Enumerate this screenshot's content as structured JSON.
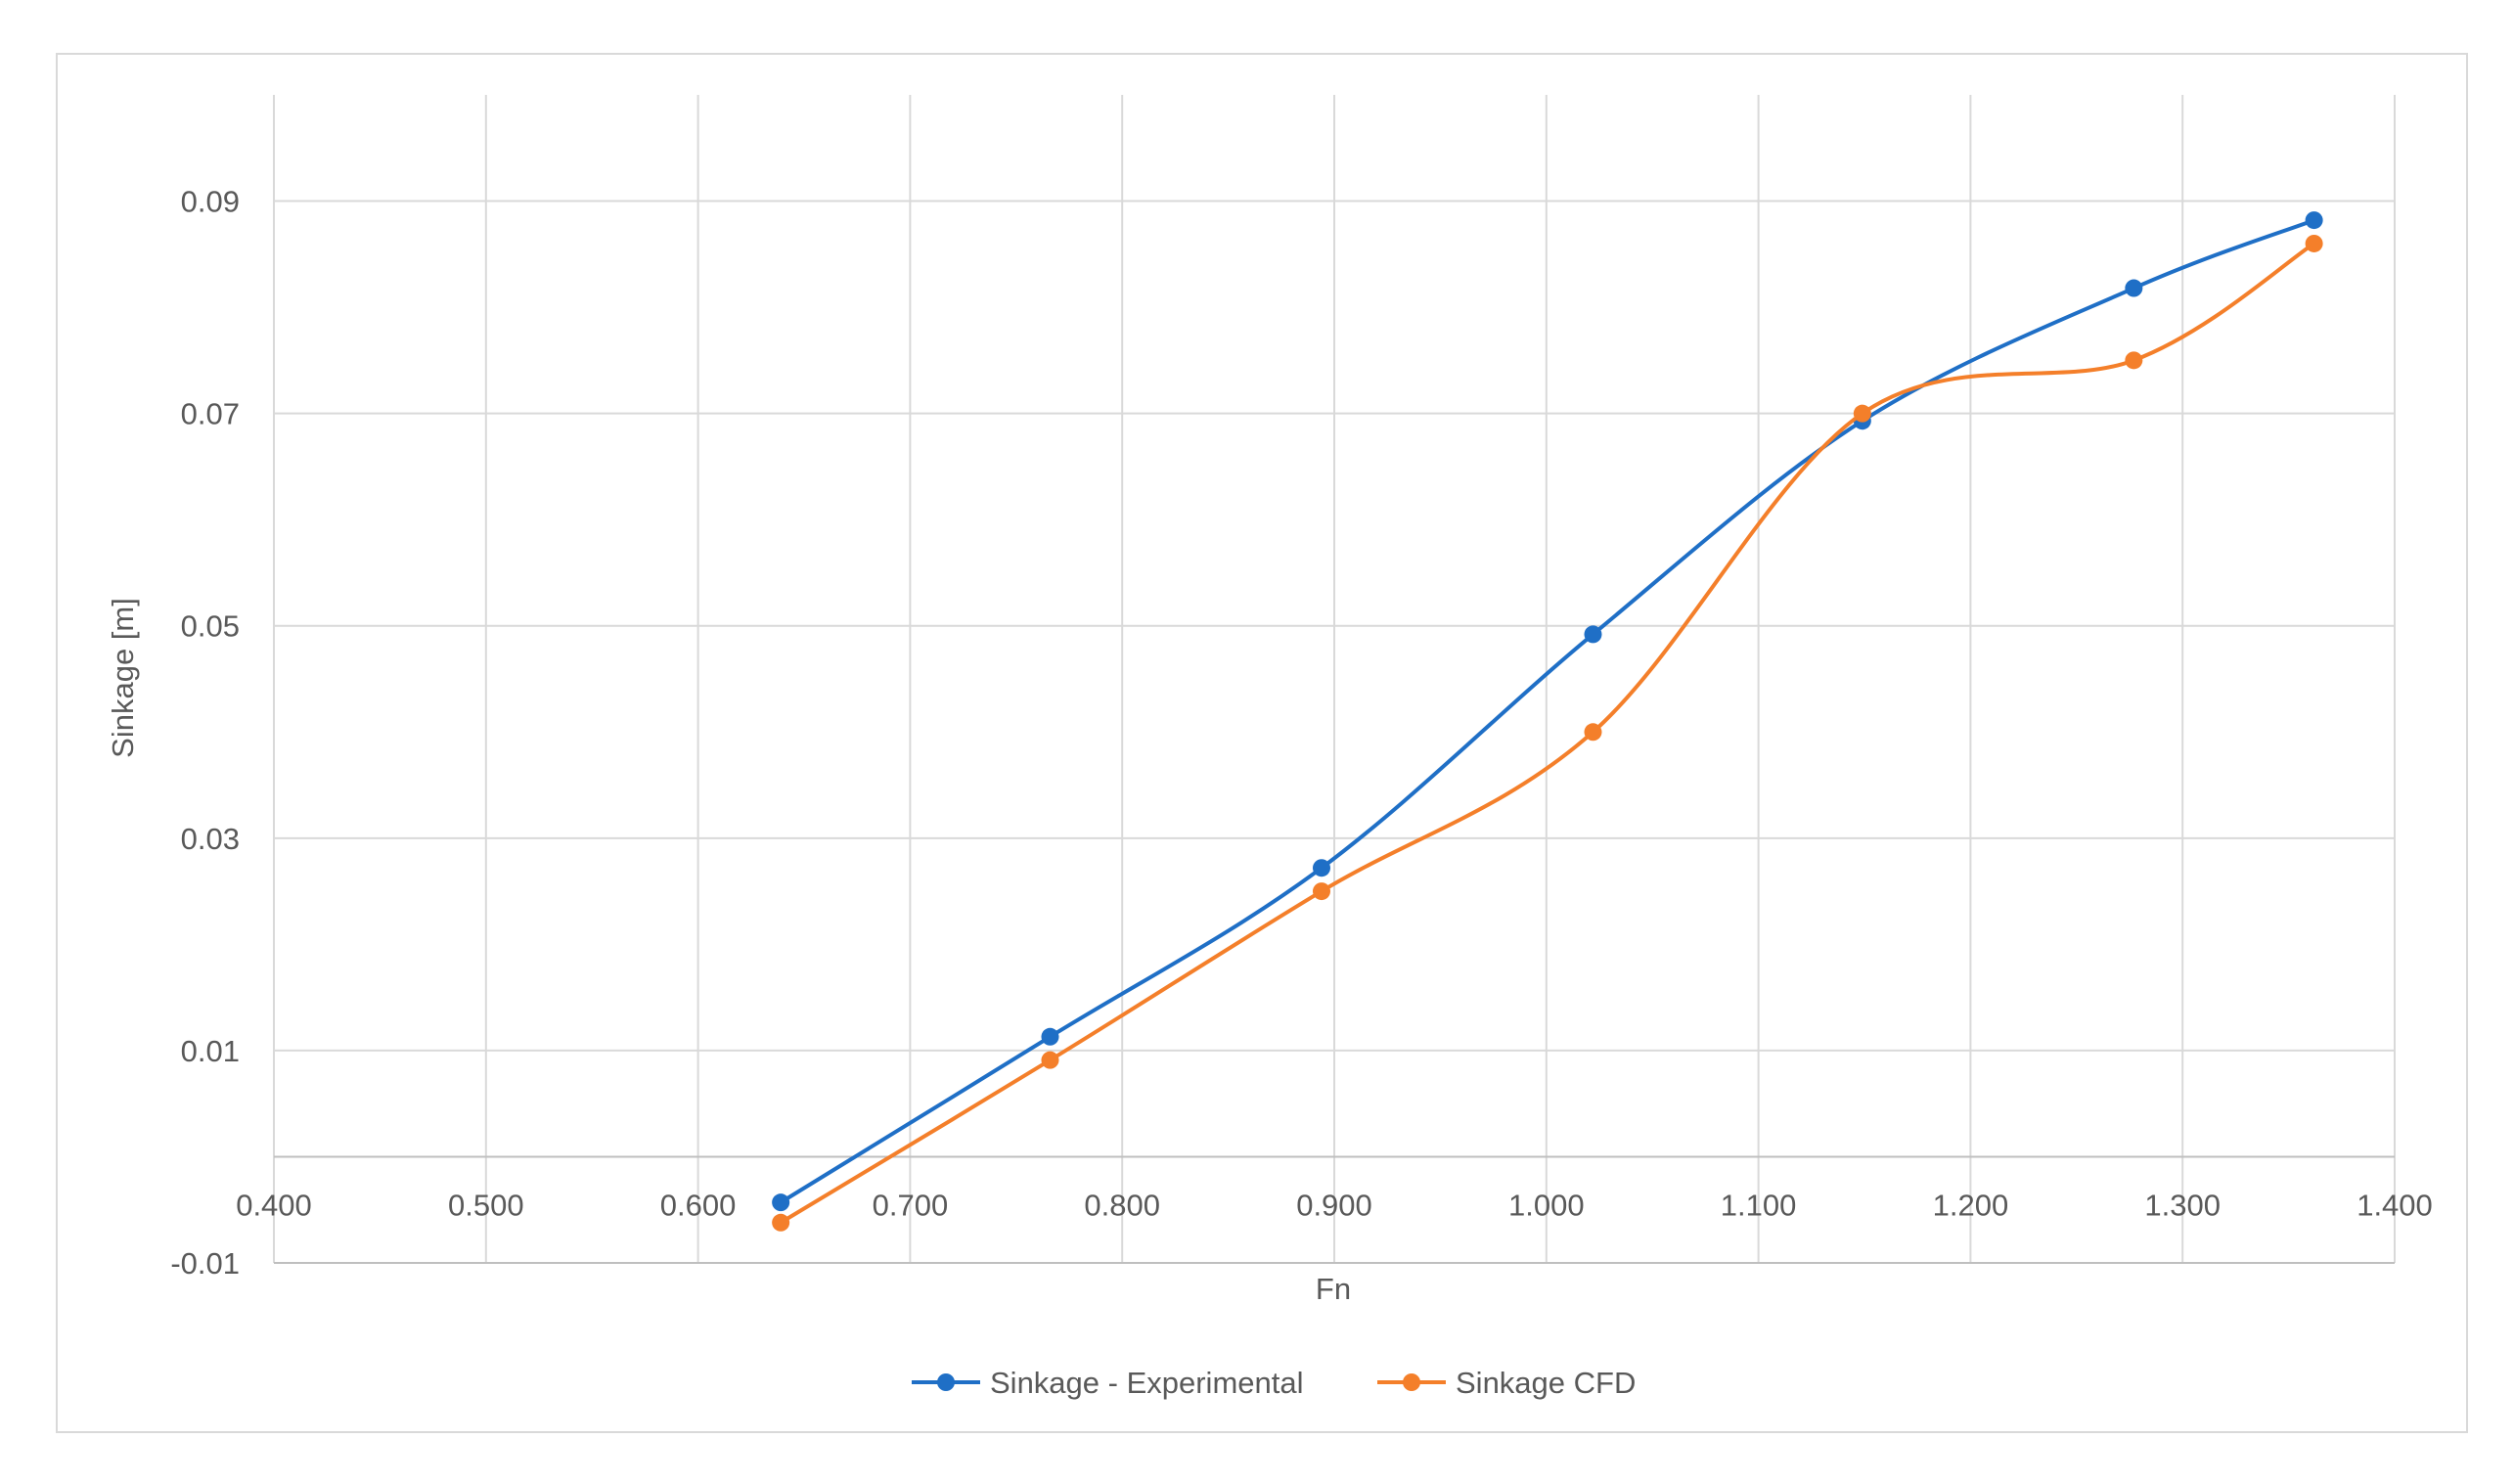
{
  "chart_data": {
    "type": "line",
    "title": "",
    "xlabel": "Fn",
    "ylabel": "Sinkage [m]",
    "xlim": [
      0.4,
      1.4
    ],
    "ylim": [
      -0.01,
      0.1
    ],
    "x_ticks": [
      0.4,
      0.5,
      0.6,
      0.7,
      0.8,
      0.9,
      1.0,
      1.1,
      1.2,
      1.3,
      1.4
    ],
    "x_tick_labels": [
      "0.400",
      "0.500",
      "0.600",
      "0.700",
      "0.800",
      "0.900",
      "1.000",
      "1.100",
      "1.200",
      "1.300",
      "1.400"
    ],
    "y_ticks": [
      -0.01,
      0.01,
      0.03,
      0.05,
      0.07,
      0.09
    ],
    "y_tick_labels": [
      "-0.01",
      "0.01",
      "0.03",
      "0.05",
      "0.07",
      "0.09"
    ],
    "grid": true,
    "smooth": true,
    "legend_position": "bottom",
    "series": [
      {
        "name": "Sinkage - Experimental",
        "color": "#1f6fc6",
        "x": [
          0.639,
          0.766,
          0.894,
          1.022,
          1.149,
          1.277,
          1.362
        ],
        "y": [
          -0.0043,
          0.0113,
          0.0272,
          0.0492,
          0.0693,
          0.0818,
          0.0882
        ]
      },
      {
        "name": "Sinkage CFD",
        "color": "#f47f2a",
        "x": [
          0.639,
          0.766,
          0.894,
          1.022,
          1.149,
          1.277,
          1.362
        ],
        "y": [
          -0.0062,
          0.0091,
          0.025,
          0.04,
          0.07,
          0.075,
          0.086
        ]
      }
    ]
  }
}
